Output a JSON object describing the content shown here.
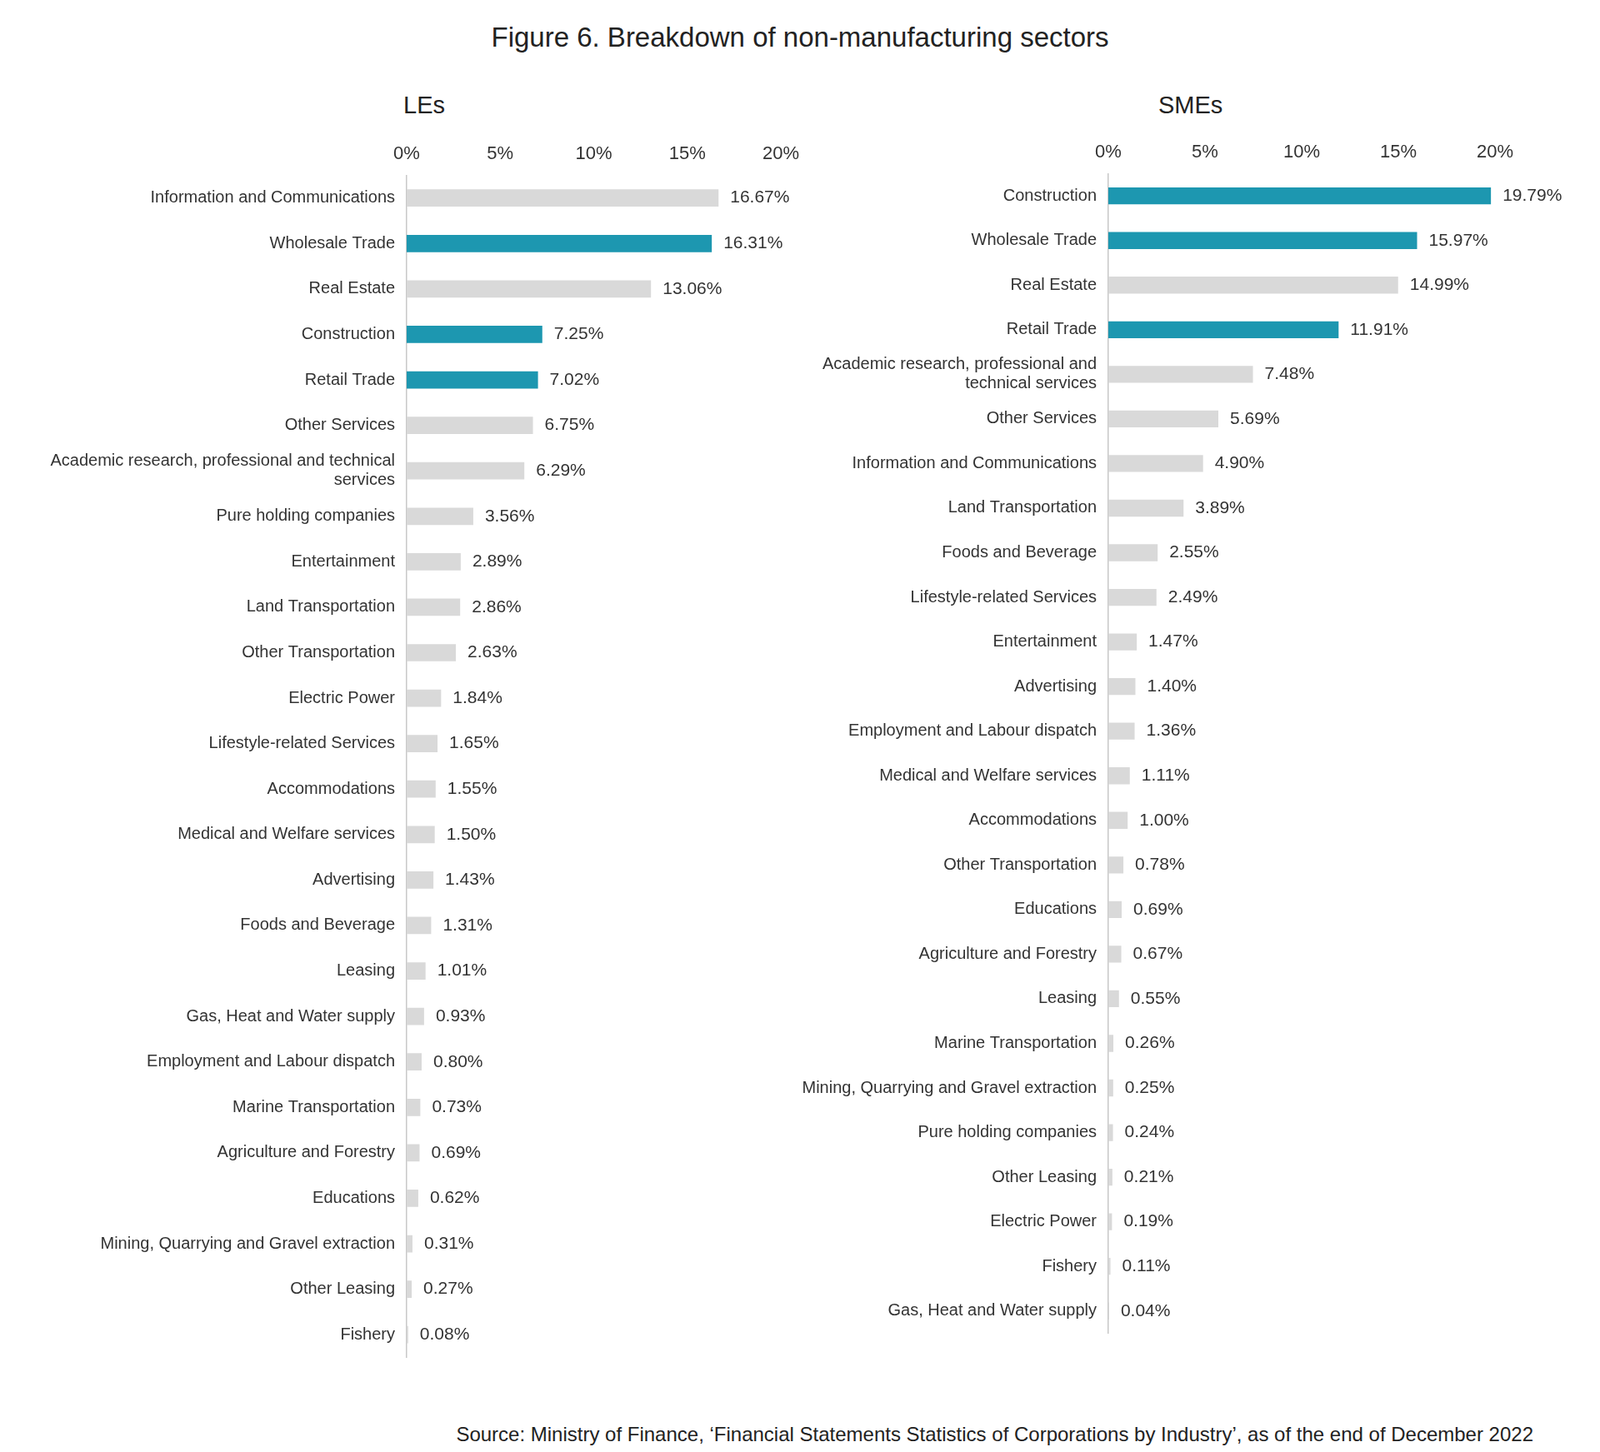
{
  "title": "Figure 6. Breakdown of non-manufacturing sectors",
  "source": "Source: Ministry of Finance, ‘Financial Statements Statistics of Corporations by Industry’, as of the end of December 2022",
  "chart_data": [
    {
      "type": "bar",
      "title": "LEs",
      "orientation": "horizontal",
      "categories": [
        "Information and Communications",
        "Wholesale Trade",
        "Real Estate",
        "Construction",
        "Retail Trade",
        "Other Services",
        "Academic research, professional and technical services",
        "Pure holding companies",
        "Entertainment",
        "Land Transportation",
        "Other Transportation",
        "Electric Power",
        "Lifestyle-related Services",
        "Accommodations",
        "Medical and Welfare services",
        "Advertising",
        "Foods and Beverage",
        "Leasing",
        "Gas, Heat and Water supply",
        "Employment and Labour dispatch",
        "Marine Transportation",
        "Agriculture and Forestry",
        "Educations",
        "Mining, Quarrying and Gravel extraction",
        "Other Leasing",
        "Fishery"
      ],
      "values": [
        16.67,
        16.31,
        13.06,
        7.25,
        7.02,
        6.75,
        6.29,
        3.56,
        2.89,
        2.86,
        2.63,
        1.84,
        1.65,
        1.55,
        1.5,
        1.43,
        1.31,
        1.01,
        0.93,
        0.8,
        0.73,
        0.69,
        0.62,
        0.31,
        0.27,
        0.08
      ],
      "value_labels": [
        "16.67%",
        "16.31%",
        "13.06%",
        "7.25%",
        "7.02%",
        "6.75%",
        "6.29%",
        "3.56%",
        "2.89%",
        "2.86%",
        "2.63%",
        "1.84%",
        "1.65%",
        "1.55%",
        "1.50%",
        "1.43%",
        "1.31%",
        "1.01%",
        "0.93%",
        "0.80%",
        "0.73%",
        "0.69%",
        "0.62%",
        "0.31%",
        "0.27%",
        "0.08%"
      ],
      "colors": [
        "#d9d9d9",
        "#1d97b0",
        "#d9d9d9",
        "#1d97b0",
        "#1d97b0",
        "#d9d9d9",
        "#d9d9d9",
        "#d9d9d9",
        "#d9d9d9",
        "#d9d9d9",
        "#d9d9d9",
        "#d9d9d9",
        "#d9d9d9",
        "#d9d9d9",
        "#d9d9d9",
        "#d9d9d9",
        "#d9d9d9",
        "#d9d9d9",
        "#d9d9d9",
        "#d9d9d9",
        "#d9d9d9",
        "#d9d9d9",
        "#d9d9d9",
        "#d9d9d9",
        "#d9d9d9",
        "#d9d9d9"
      ],
      "xlim": [
        0,
        20
      ],
      "xticks": [
        {
          "value": 0,
          "label": "0%"
        },
        {
          "value": 5,
          "label": "5%"
        },
        {
          "value": 10,
          "label": "10%"
        },
        {
          "value": 15,
          "label": "15%"
        },
        {
          "value": 20,
          "label": "20%"
        }
      ],
      "grid": false,
      "data_labels": true
    },
    {
      "type": "bar",
      "title": "SMEs",
      "orientation": "horizontal",
      "categories": [
        "Construction",
        "Wholesale Trade",
        "Real Estate",
        "Retail Trade",
        "Academic research, professional and technical services",
        "Other Services",
        "Information and Communications",
        "Land Transportation",
        "Foods and Beverage",
        "Lifestyle-related Services",
        "Entertainment",
        "Advertising",
        "Employment and Labour dispatch",
        "Medical and Welfare services",
        "Accommodations",
        "Other Transportation",
        "Educations",
        "Agriculture and Forestry",
        "Leasing",
        "Marine Transportation",
        "Mining, Quarrying and Gravel extraction",
        "Pure holding companies",
        "Other Leasing",
        "Electric Power",
        "Fishery",
        "Gas, Heat and Water supply"
      ],
      "values": [
        19.79,
        15.97,
        14.99,
        11.91,
        7.48,
        5.69,
        4.9,
        3.89,
        2.55,
        2.49,
        1.47,
        1.4,
        1.36,
        1.11,
        1.0,
        0.78,
        0.69,
        0.67,
        0.55,
        0.26,
        0.25,
        0.24,
        0.21,
        0.19,
        0.11,
        0.04
      ],
      "value_labels": [
        "19.79%",
        "15.97%",
        "14.99%",
        "11.91%",
        "7.48%",
        "5.69%",
        "4.90%",
        "3.89%",
        "2.55%",
        "2.49%",
        "1.47%",
        "1.40%",
        "1.36%",
        "1.11%",
        "1.00%",
        "0.78%",
        "0.69%",
        "0.67%",
        "0.55%",
        "0.26%",
        "0.25%",
        "0.24%",
        "0.21%",
        "0.19%",
        "0.11%",
        "0.04%"
      ],
      "colors": [
        "#1d97b0",
        "#1d97b0",
        "#d9d9d9",
        "#1d97b0",
        "#d9d9d9",
        "#d9d9d9",
        "#d9d9d9",
        "#d9d9d9",
        "#d9d9d9",
        "#d9d9d9",
        "#d9d9d9",
        "#d9d9d9",
        "#d9d9d9",
        "#d9d9d9",
        "#d9d9d9",
        "#d9d9d9",
        "#d9d9d9",
        "#d9d9d9",
        "#d9d9d9",
        "#d9d9d9",
        "#d9d9d9",
        "#d9d9d9",
        "#d9d9d9",
        "#d9d9d9",
        "#d9d9d9",
        "#d9d9d9"
      ],
      "xlim": [
        0,
        20
      ],
      "xticks": [
        {
          "value": 0,
          "label": "0%"
        },
        {
          "value": 5,
          "label": "5%"
        },
        {
          "value": 10,
          "label": "10%"
        },
        {
          "value": 15,
          "label": "15%"
        },
        {
          "value": 20,
          "label": "20%"
        }
      ],
      "grid": false,
      "data_labels": true
    }
  ]
}
